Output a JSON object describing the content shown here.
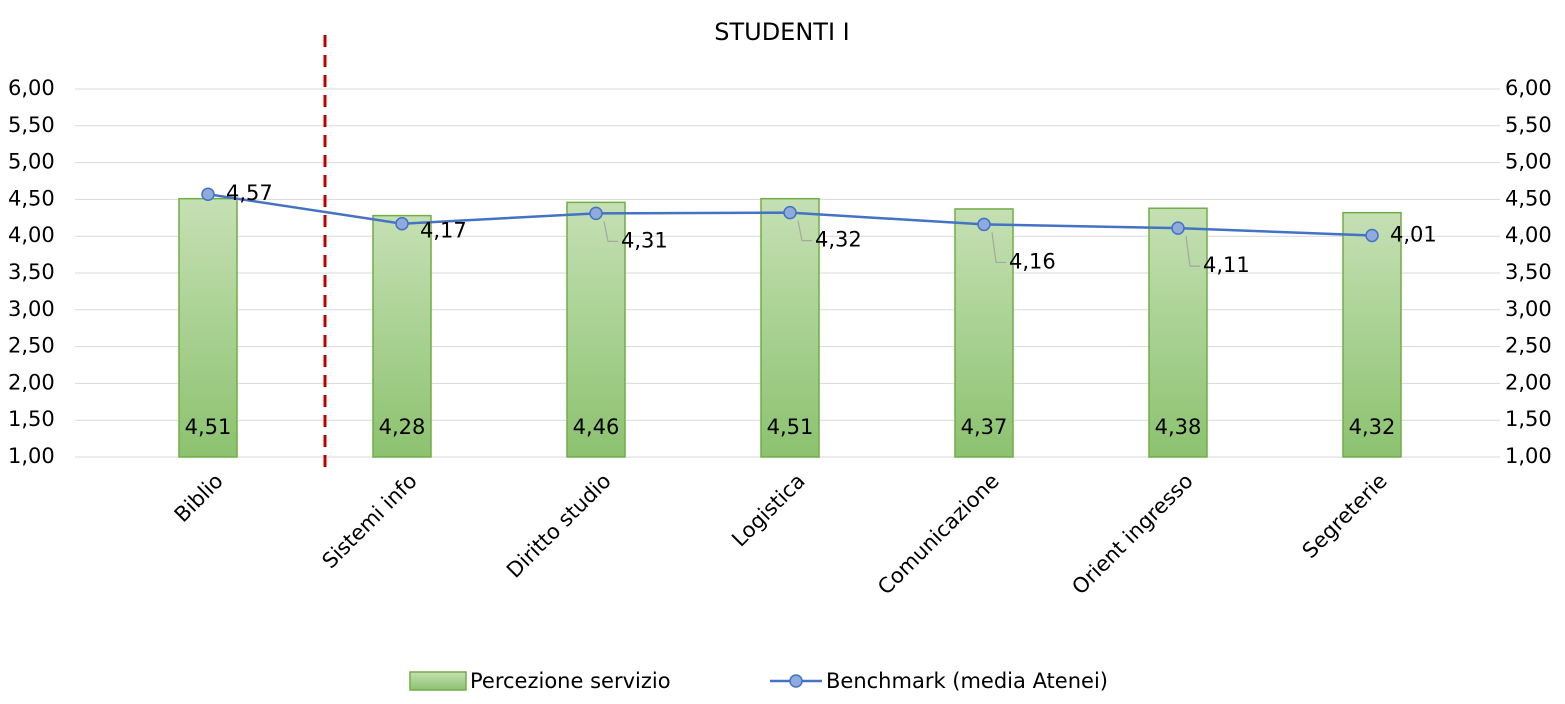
{
  "chart_data": {
    "type": "bar",
    "title": "STUDENTI I",
    "categories": [
      "Biblio",
      "Sistemi info",
      "Diritto studio",
      "Logistica",
      "Comunicazione",
      "Orient ingresso",
      "Segreterie"
    ],
    "series": [
      {
        "name": "Percezione servizio",
        "type": "bar",
        "color": "#a9d18e",
        "values": [
          4.51,
          4.28,
          4.46,
          4.51,
          4.37,
          4.38,
          4.32
        ],
        "value_labels": [
          "4,51",
          "4,28",
          "4,46",
          "4,51",
          "4,37",
          "4,38",
          "4,32"
        ]
      },
      {
        "name": "Benchmark (media Atenei)",
        "type": "line",
        "axis": "y2",
        "color": "#4472c4",
        "values": [
          4.57,
          4.17,
          4.31,
          4.32,
          4.16,
          4.11,
          4.01
        ],
        "value_labels": [
          "4,57",
          "4,17",
          "4,31",
          "4,32",
          "4,16",
          "4,11",
          "4,01"
        ]
      }
    ],
    "ylim": [
      1,
      6
    ],
    "yticks": [
      {
        "value": 1,
        "label": "1,00"
      },
      {
        "value": 1.5,
        "label": "1,50"
      },
      {
        "value": 2,
        "label": "2,00"
      },
      {
        "value": 2.5,
        "label": "2,50"
      },
      {
        "value": 3,
        "label": "3,00"
      },
      {
        "value": 3.5,
        "label": "3,50"
      },
      {
        "value": 4,
        "label": "4,00"
      },
      {
        "value": 4.5,
        "label": "4,50"
      },
      {
        "value": 5,
        "label": "5,00"
      },
      {
        "value": 5.5,
        "label": "5,50"
      },
      {
        "value": 6,
        "label": "6,00"
      }
    ],
    "y2lim": [
      1,
      6
    ],
    "y2ticks": [
      {
        "value": 1,
        "label": "1,00"
      },
      {
        "value": 1.5,
        "label": "1,50"
      },
      {
        "value": 2,
        "label": "2,00"
      },
      {
        "value": 2.5,
        "label": "2,50"
      },
      {
        "value": 3,
        "label": "3,00"
      },
      {
        "value": 3.5,
        "label": "3,50"
      },
      {
        "value": 4,
        "label": "4,00"
      },
      {
        "value": 4.5,
        "label": "4,50"
      },
      {
        "value": 5,
        "label": "5,00"
      },
      {
        "value": 5.5,
        "label": "5,50"
      },
      {
        "value": 6,
        "label": "6,00"
      }
    ],
    "grid": true,
    "legend": "bottom"
  }
}
